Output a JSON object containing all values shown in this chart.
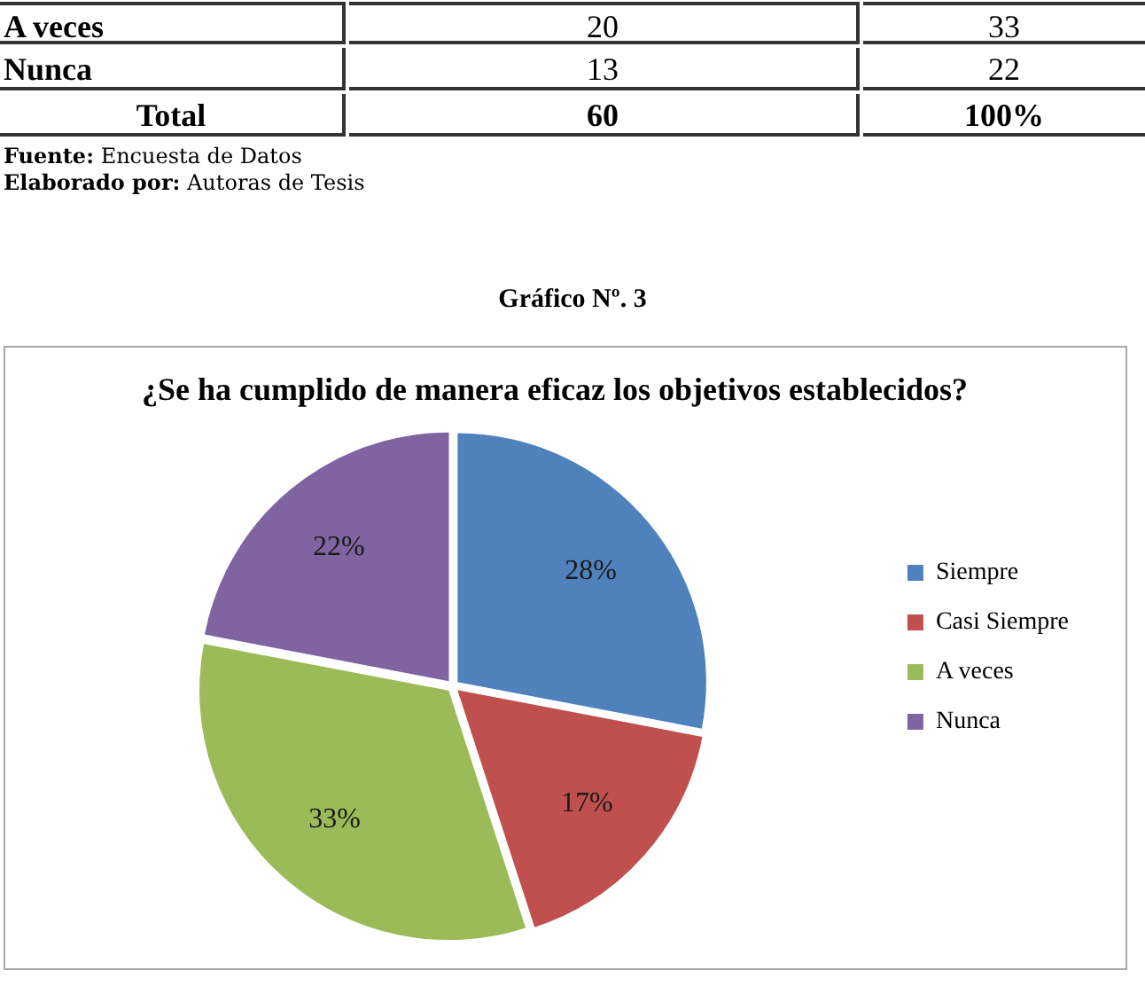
{
  "chart_data": {
    "type": "pie",
    "title": "¿Se ha cumplido de manera eficaz los objetivos establecidos?",
    "categories": [
      "Siempre",
      "Casi Siempre",
      "A veces",
      "Nunca"
    ],
    "values": [
      28,
      17,
      33,
      22
    ],
    "colors": [
      "#4f81bd",
      "#c0504d",
      "#9bbb59",
      "#8064a2"
    ],
    "value_labels": [
      "28%",
      "17%",
      "33%",
      "22%"
    ],
    "legend": "right",
    "annotations": [
      "A veces",
      "20",
      "33",
      "Nunca",
      "13",
      "22",
      "Total",
      "60",
      "100%",
      "Fuente: Encuesta de Datos",
      "Elaborado por: Autoras de Tesis",
      "Gráfico Nº. 3"
    ]
  }
}
